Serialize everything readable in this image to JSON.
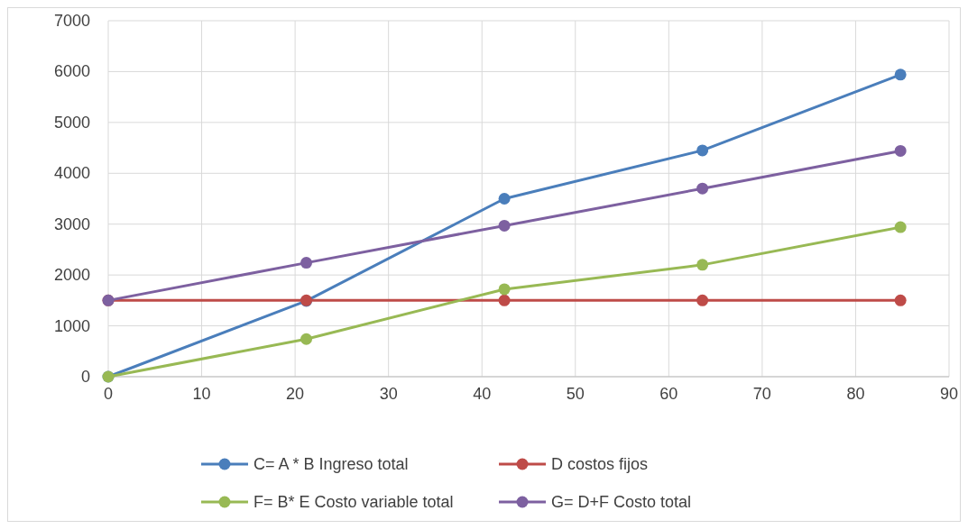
{
  "chart_data": {
    "type": "line",
    "x": [
      0,
      21.2,
      42.4,
      63.6,
      84.8
    ],
    "series": [
      {
        "name": "C= A * B Ingreso total",
        "color": "#4a7ebb",
        "values": [
          0,
          1490,
          3500,
          4450,
          5940
        ]
      },
      {
        "name": "D costos fijos",
        "color": "#be4b48",
        "values": [
          1500,
          1500,
          1500,
          1500,
          1500
        ]
      },
      {
        "name": "F= B* E Costo variable total",
        "color": "#98b954",
        "values": [
          0,
          740,
          1720,
          2200,
          2940
        ]
      },
      {
        "name": "G= D+F Costo total",
        "color": "#7d60a0",
        "values": [
          1500,
          2240,
          2970,
          3700,
          4440
        ]
      }
    ],
    "xlim": [
      0,
      90
    ],
    "xticks": [
      0,
      10,
      20,
      30,
      40,
      50,
      60,
      70,
      80,
      90
    ],
    "ylim": [
      0,
      7000
    ],
    "yticks": [
      0,
      1000,
      2000,
      3000,
      4000,
      5000,
      6000,
      7000
    ],
    "grid": true,
    "legend": "bottom",
    "marker": "circle",
    "line_style": "solid"
  }
}
